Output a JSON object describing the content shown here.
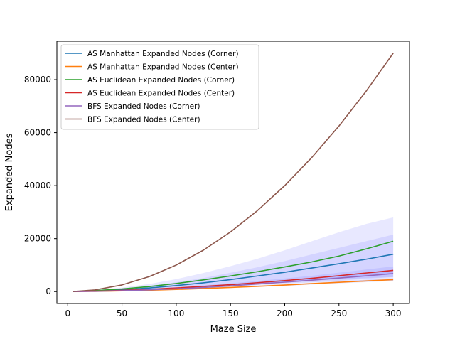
{
  "chart_data": {
    "type": "line",
    "xlabel": "Maze Size",
    "ylabel": "Expanded Nodes",
    "xlim": [
      -10,
      315
    ],
    "ylim": [
      -4500,
      94500
    ],
    "x_ticks": [
      0,
      50,
      100,
      150,
      200,
      250,
      300
    ],
    "y_ticks": [
      0,
      20000,
      40000,
      60000,
      80000
    ],
    "x_tick_labels": [
      "0",
      "50",
      "100",
      "150",
      "200",
      "250",
      "300"
    ],
    "y_tick_labels": [
      "0",
      "20000",
      "40000",
      "60000",
      "80000"
    ],
    "grid": false,
    "legend_position": "top-left",
    "x": [
      5,
      25,
      50,
      75,
      100,
      125,
      150,
      175,
      200,
      225,
      250,
      275,
      300
    ],
    "series": [
      {
        "name": "AS Manhattan Expanded Nodes (Corner)",
        "color": "#1f77b4",
        "values": [
          20,
          250,
          700,
          1350,
          2250,
          3300,
          4500,
          5900,
          7300,
          8900,
          10500,
          12200,
          14100
        ],
        "band_lower": [
          10,
          120,
          400,
          800,
          1300,
          1900,
          2500,
          3100,
          3600,
          4100,
          4600,
          5100,
          5500
        ],
        "band_upper": [
          30,
          380,
          1100,
          2100,
          3500,
          5100,
          7100,
          9200,
          11500,
          14000,
          16500,
          19000,
          21500
        ]
      },
      {
        "name": "AS Manhattan Expanded Nodes (Center)",
        "color": "#ff7f0e",
        "values": [
          15,
          90,
          260,
          500,
          800,
          1150,
          1550,
          2000,
          2450,
          3000,
          3500,
          4000,
          4500
        ],
        "band_lower": [
          10,
          70,
          220,
          430,
          700,
          1000,
          1350,
          1750,
          2150,
          2650,
          3100,
          3550,
          4000
        ],
        "band_upper": [
          20,
          110,
          300,
          570,
          900,
          1300,
          1750,
          2250,
          2750,
          3350,
          3900,
          4450,
          5000
        ]
      },
      {
        "name": "AS Euclidean Expanded Nodes (Corner)",
        "color": "#2ca02c",
        "values": [
          25,
          350,
          1000,
          1900,
          3050,
          4400,
          5900,
          7500,
          9300,
          11200,
          13400,
          16100,
          19000
        ],
        "band_lower": [
          15,
          200,
          550,
          950,
          1500,
          2000,
          2500,
          2900,
          3200,
          3500,
          3700,
          3900,
          4000
        ],
        "band_upper": [
          35,
          550,
          1500,
          2850,
          4700,
          7000,
          9600,
          12400,
          15600,
          19000,
          22400,
          25500,
          28000
        ]
      },
      {
        "name": "AS Euclidean Expanded Nodes (Center)",
        "color": "#d62728",
        "values": [
          15,
          160,
          450,
          850,
          1350,
          1950,
          2600,
          3350,
          4150,
          5000,
          6000,
          7000,
          8000
        ],
        "band_lower": [
          10,
          120,
          360,
          680,
          1080,
          1550,
          2100,
          2700,
          3350,
          4050,
          4850,
          5700,
          6500
        ],
        "band_upper": [
          20,
          200,
          540,
          1020,
          1620,
          2350,
          3100,
          4000,
          4950,
          5950,
          7150,
          8300,
          9500
        ]
      },
      {
        "name": "BFS Expanded Nodes (Corner)",
        "color": "#9467bd",
        "values": [
          12,
          120,
          330,
          640,
          1050,
          1550,
          2150,
          2850,
          3550,
          4300,
          5100,
          5950,
          6800
        ],
        "band_lower": [
          8,
          90,
          260,
          510,
          840,
          1250,
          1730,
          2300,
          2850,
          3450,
          4100,
          4780,
          5450
        ],
        "band_upper": [
          16,
          150,
          400,
          770,
          1260,
          1850,
          2570,
          3400,
          4250,
          5150,
          6100,
          7120,
          8150
        ]
      },
      {
        "name": "BFS Expanded Nodes (Center)",
        "color": "#8c564b",
        "values": [
          25,
          625,
          2500,
          5625,
          10000,
          15625,
          22500,
          30625,
          40000,
          50625,
          62500,
          75625,
          90000
        ],
        "band_lower": [
          25,
          625,
          2500,
          5625,
          10000,
          15625,
          22500,
          30625,
          40000,
          50625,
          62500,
          75625,
          90000
        ],
        "band_upper": [
          25,
          625,
          2500,
          5625,
          10000,
          15625,
          22500,
          30625,
          40000,
          50625,
          62500,
          75625,
          90000
        ]
      }
    ]
  }
}
